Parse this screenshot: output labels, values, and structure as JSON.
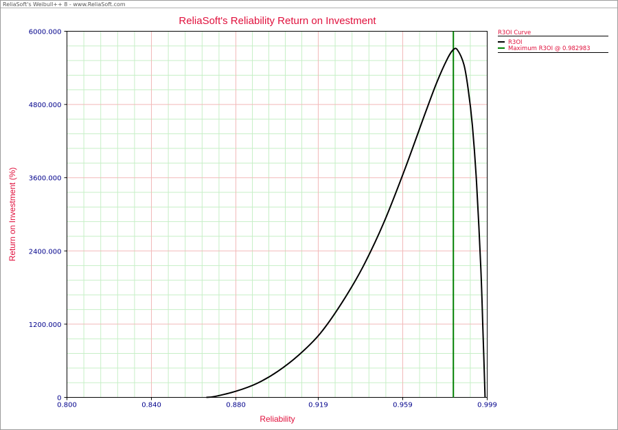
{
  "window": {
    "app_title": "ReliaSoft's Weibull++ 8 - www.ReliaSoft.com"
  },
  "colors": {
    "title": "#e0103c",
    "axis_label": "#e0103c",
    "tick_label": "#00008b",
    "major_grid": "#f2b8b8",
    "minor_grid": "#c6efc6",
    "curve": "#000000",
    "max_line": "#008000",
    "legend_text": "#e0103c"
  },
  "chart_data": {
    "type": "line",
    "title": "ReliaSoft's Reliability Return on Investment",
    "xlabel": "Reliability",
    "ylabel": "Return on Investment (%)",
    "xlim": [
      0.8,
      0.999
    ],
    "ylim": [
      0,
      6000
    ],
    "x_ticks": [
      0.8,
      0.84,
      0.88,
      0.919,
      0.959,
      0.999
    ],
    "x_tick_labels": [
      "0.800",
      "0.840",
      "0.880",
      "0.919",
      "0.959",
      "0.999"
    ],
    "y_ticks": [
      0,
      1200,
      2400,
      3600,
      4800,
      6000
    ],
    "y_tick_labels": [
      "0",
      "1200.000",
      "2400.000",
      "3600.000",
      "4800.000",
      "6000.000"
    ],
    "grid": true,
    "legend_position": "right",
    "legend_title": "R3OI Curve",
    "series": [
      {
        "name": "R3OI",
        "x": [
          0.866,
          0.87,
          0.88,
          0.89,
          0.9,
          0.91,
          0.92,
          0.93,
          0.94,
          0.95,
          0.96,
          0.97,
          0.975,
          0.98,
          0.983,
          0.985,
          0.988,
          0.99,
          0.992,
          0.994,
          0.996,
          0.997,
          0.998
        ],
        "y": [
          0,
          15,
          100,
          230,
          430,
          700,
          1050,
          1540,
          2130,
          2860,
          3740,
          4690,
          5150,
          5540,
          5700,
          5690,
          5450,
          5050,
          4450,
          3500,
          2100,
          1100,
          0
        ]
      },
      {
        "name": "Maximum R3OI @ 0.982983",
        "x_value": 0.982983
      }
    ]
  }
}
